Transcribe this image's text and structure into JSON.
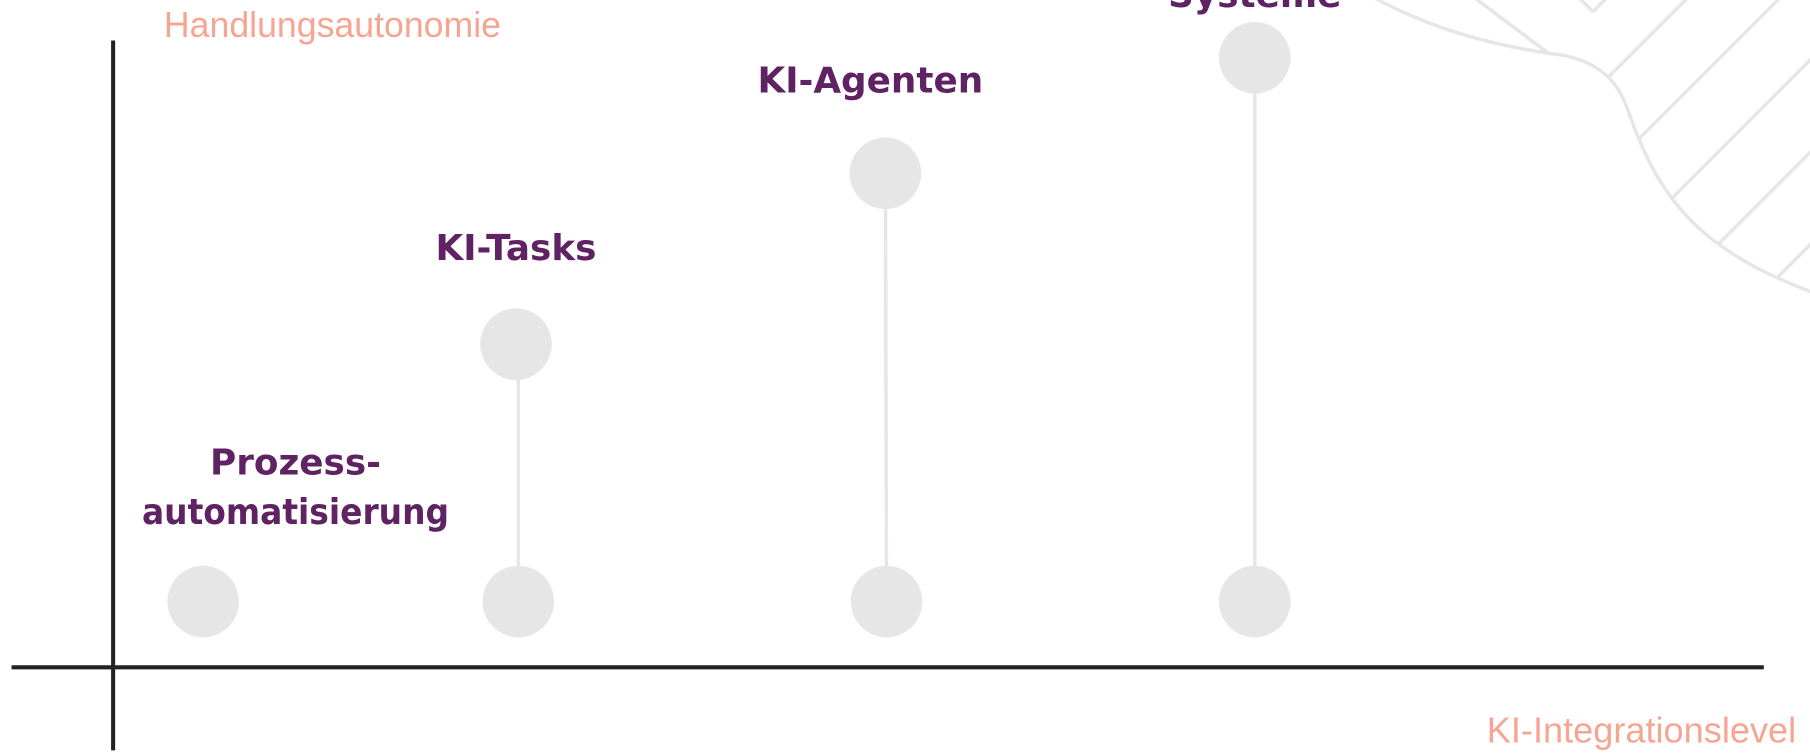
{
  "axes": {
    "y_label": "Handlungsautonomie",
    "x_label": "KI-Integrationslevel"
  },
  "nodes": [
    {
      "lines": [
        "Prozess-",
        "automatisierung"
      ]
    },
    {
      "lines": [
        "KI-Tasks"
      ]
    },
    {
      "lines": [
        "KI-Agenten"
      ]
    },
    {
      "lines": [
        "Systeme"
      ]
    }
  ]
}
